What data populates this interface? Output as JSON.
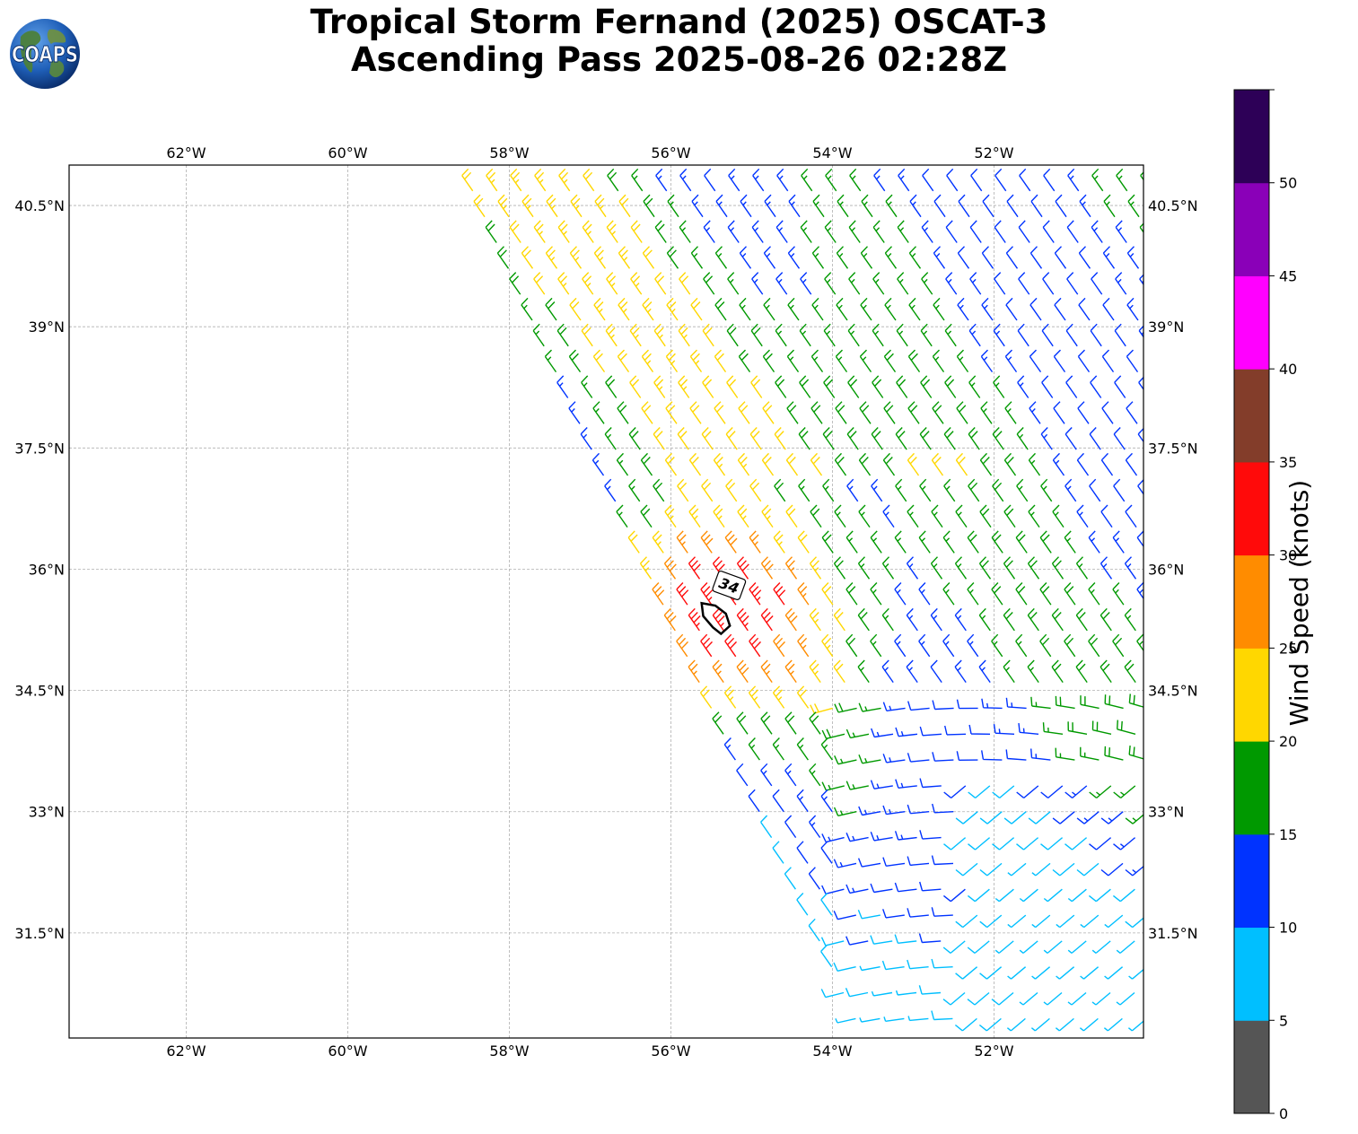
{
  "title_line1": "Tropical Storm Fernand (2025) OSCAT-3",
  "title_line2": "Ascending Pass 2025-08-26 02:28Z",
  "logo_text": "COAPS",
  "colorbar": {
    "label": "Wind Speed (knots)",
    "ticks": [
      "0",
      "5",
      "10",
      "15",
      "20",
      "25",
      "30",
      "35",
      "40",
      "45",
      "50"
    ],
    "bins": [
      {
        "min": 0,
        "max": 5,
        "color": "#555555"
      },
      {
        "min": 5,
        "max": 10,
        "color": "#00bfff"
      },
      {
        "min": 10,
        "max": 15,
        "color": "#0033ff"
      },
      {
        "min": 15,
        "max": 20,
        "color": "#009900"
      },
      {
        "min": 20,
        "max": 25,
        "color": "#ffd700"
      },
      {
        "min": 25,
        "max": 30,
        "color": "#ff8c00"
      },
      {
        "min": 30,
        "max": 35,
        "color": "#ff0a0a"
      },
      {
        "min": 35,
        "max": 40,
        "color": "#833d2a"
      },
      {
        "min": 40,
        "max": 45,
        "color": "#ff00ff"
      },
      {
        "min": 45,
        "max": 50,
        "color": "#8a00b8"
      },
      {
        "min": 50,
        "max": 55,
        "color": "#2d0057"
      }
    ]
  },
  "map": {
    "lon_range": [
      -63.45,
      -50.15
    ],
    "lat_range": [
      30.2,
      41.0
    ],
    "lon_ticks": [
      {
        "value": -62,
        "label": "62°W"
      },
      {
        "value": -60,
        "label": "60°W"
      },
      {
        "value": -58,
        "label": "58°W"
      },
      {
        "value": -56,
        "label": "56°W"
      },
      {
        "value": -54,
        "label": "54°W"
      },
      {
        "value": -52,
        "label": "52°W"
      }
    ],
    "lat_ticks": [
      {
        "value": 40.5,
        "label": "40.5°N"
      },
      {
        "value": 39,
        "label": "39°N"
      },
      {
        "value": 37.5,
        "label": "37.5°N"
      },
      {
        "value": 36,
        "label": "36°N"
      },
      {
        "value": 34.5,
        "label": "34.5°N"
      },
      {
        "value": 33,
        "label": "33°N"
      },
      {
        "value": 31.5,
        "label": "31.5°N"
      }
    ],
    "contour_label": "34",
    "contour_34kt": [
      [
        -55.62,
        35.58
      ],
      [
        -55.6,
        35.42
      ],
      [
        -55.48,
        35.28
      ],
      [
        -55.38,
        35.2
      ],
      [
        -55.27,
        35.3
      ],
      [
        -55.32,
        35.45
      ],
      [
        -55.45,
        35.55
      ]
    ]
  }
}
